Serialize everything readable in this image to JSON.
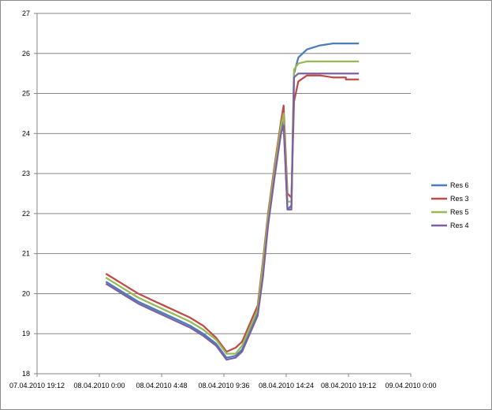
{
  "chart_data": {
    "type": "line",
    "title": "",
    "xlabel": "",
    "ylabel": "",
    "ylim": [
      18,
      27
    ],
    "y_ticks": [
      "18",
      "19",
      "20",
      "21",
      "22",
      "23",
      "24",
      "25",
      "26",
      "27"
    ],
    "x_range": [
      "2010-04-07T19:12",
      "2010-04-09T00:00"
    ],
    "x_tick_labels": [
      "07.04.2010 19:12",
      "08.04.2010 0:00",
      "08.04.2010 4:48",
      "08.04.2010 9:36",
      "08.04.2010 14:24",
      "08.04.2010 19:12",
      "09.04.2010 0:00"
    ],
    "grid": "horizontal",
    "legend_position": "right",
    "series": [
      {
        "name": "Res 6",
        "color": "#4a7ebb",
        "points": [
          [
            "2010-04-08T00:30",
            20.3
          ],
          [
            "2010-04-08T01:00",
            20.2
          ],
          [
            "2010-04-08T02:00",
            20.0
          ],
          [
            "2010-04-08T03:00",
            19.8
          ],
          [
            "2010-04-08T04:00",
            19.65
          ],
          [
            "2010-04-08T05:00",
            19.5
          ],
          [
            "2010-04-08T06:00",
            19.35
          ],
          [
            "2010-04-08T07:00",
            19.2
          ],
          [
            "2010-04-08T08:00",
            19.0
          ],
          [
            "2010-04-08T09:00",
            18.75
          ],
          [
            "2010-04-08T09:48",
            18.4
          ],
          [
            "2010-04-08T10:30",
            18.45
          ],
          [
            "2010-04-08T11:00",
            18.6
          ],
          [
            "2010-04-08T11:40",
            19.1
          ],
          [
            "2010-04-08T12:12",
            19.5
          ],
          [
            "2010-04-08T12:36",
            20.5
          ],
          [
            "2010-04-08T13:00",
            21.8
          ],
          [
            "2010-04-08T13:30",
            23.0
          ],
          [
            "2010-04-08T14:00",
            24.1
          ],
          [
            "2010-04-08T14:12",
            24.3
          ],
          [
            "2010-04-08T14:30",
            22.1
          ],
          [
            "2010-04-08T14:48",
            22.2
          ],
          [
            "2010-04-08T15:00",
            25.5
          ],
          [
            "2010-04-08T15:20",
            25.9
          ],
          [
            "2010-04-08T16:00",
            26.1
          ],
          [
            "2010-04-08T17:00",
            26.2
          ],
          [
            "2010-04-08T18:00",
            26.25
          ],
          [
            "2010-04-08T20:00",
            26.25
          ]
        ]
      },
      {
        "name": "Res 3",
        "color": "#be4b48",
        "points": [
          [
            "2010-04-08T00:30",
            20.5
          ],
          [
            "2010-04-08T01:00",
            20.4
          ],
          [
            "2010-04-08T02:00",
            20.2
          ],
          [
            "2010-04-08T03:00",
            20.0
          ],
          [
            "2010-04-08T04:00",
            19.85
          ],
          [
            "2010-04-08T05:00",
            19.7
          ],
          [
            "2010-04-08T06:00",
            19.55
          ],
          [
            "2010-04-08T07:00",
            19.4
          ],
          [
            "2010-04-08T08:00",
            19.2
          ],
          [
            "2010-04-08T09:00",
            18.9
          ],
          [
            "2010-04-08T09:48",
            18.55
          ],
          [
            "2010-04-08T10:30",
            18.65
          ],
          [
            "2010-04-08T11:00",
            18.8
          ],
          [
            "2010-04-08T11:40",
            19.3
          ],
          [
            "2010-04-08T12:12",
            19.7
          ],
          [
            "2010-04-08T12:36",
            20.8
          ],
          [
            "2010-04-08T13:00",
            22.0
          ],
          [
            "2010-04-08T13:30",
            23.2
          ],
          [
            "2010-04-08T14:00",
            24.3
          ],
          [
            "2010-04-08T14:12",
            24.7
          ],
          [
            "2010-04-08T14:30",
            22.5
          ],
          [
            "2010-04-08T14:48",
            22.4
          ],
          [
            "2010-04-08T15:00",
            24.8
          ],
          [
            "2010-04-08T15:20",
            25.3
          ],
          [
            "2010-04-08T16:00",
            25.45
          ],
          [
            "2010-04-08T17:00",
            25.45
          ],
          [
            "2010-04-08T18:00",
            25.4
          ],
          [
            "2010-04-08T20:00",
            25.35
          ]
        ]
      },
      {
        "name": "Res 5",
        "color": "#98b954",
        "points": [
          [
            "2010-04-08T00:30",
            20.4
          ],
          [
            "2010-04-08T01:00",
            20.3
          ],
          [
            "2010-04-08T02:00",
            20.1
          ],
          [
            "2010-04-08T03:00",
            19.9
          ],
          [
            "2010-04-08T04:00",
            19.75
          ],
          [
            "2010-04-08T05:00",
            19.6
          ],
          [
            "2010-04-08T06:00",
            19.45
          ],
          [
            "2010-04-08T07:00",
            19.3
          ],
          [
            "2010-04-08T08:00",
            19.1
          ],
          [
            "2010-04-08T09:00",
            18.85
          ],
          [
            "2010-04-08T09:48",
            18.5
          ],
          [
            "2010-04-08T10:30",
            18.5
          ],
          [
            "2010-04-08T11:00",
            18.7
          ],
          [
            "2010-04-08T11:40",
            19.2
          ],
          [
            "2010-04-08T12:12",
            19.6
          ],
          [
            "2010-04-08T12:36",
            20.7
          ],
          [
            "2010-04-08T13:00",
            21.9
          ],
          [
            "2010-04-08T13:30",
            23.1
          ],
          [
            "2010-04-08T14:00",
            24.2
          ],
          [
            "2010-04-08T14:12",
            24.5
          ],
          [
            "2010-04-08T14:30",
            22.3
          ],
          [
            "2010-04-08T14:48",
            22.3
          ],
          [
            "2010-04-08T15:00",
            25.6
          ],
          [
            "2010-04-08T15:20",
            25.75
          ],
          [
            "2010-04-08T16:00",
            25.8
          ],
          [
            "2010-04-08T17:00",
            25.8
          ],
          [
            "2010-04-08T18:00",
            25.8
          ],
          [
            "2010-04-08T20:00",
            25.8
          ]
        ]
      },
      {
        "name": "Res 4",
        "color": "#7d60a0",
        "points": [
          [
            "2010-04-08T00:30",
            20.25
          ],
          [
            "2010-04-08T01:00",
            20.15
          ],
          [
            "2010-04-08T02:00",
            19.95
          ],
          [
            "2010-04-08T03:00",
            19.75
          ],
          [
            "2010-04-08T04:00",
            19.6
          ],
          [
            "2010-04-08T05:00",
            19.45
          ],
          [
            "2010-04-08T06:00",
            19.3
          ],
          [
            "2010-04-08T07:00",
            19.15
          ],
          [
            "2010-04-08T08:00",
            18.95
          ],
          [
            "2010-04-08T09:00",
            18.7
          ],
          [
            "2010-04-08T09:48",
            18.35
          ],
          [
            "2010-04-08T10:30",
            18.4
          ],
          [
            "2010-04-08T11:00",
            18.55
          ],
          [
            "2010-04-08T11:40",
            19.05
          ],
          [
            "2010-04-08T12:12",
            19.45
          ],
          [
            "2010-04-08T12:36",
            20.4
          ],
          [
            "2010-04-08T13:00",
            21.7
          ],
          [
            "2010-04-08T13:30",
            22.9
          ],
          [
            "2010-04-08T14:00",
            24.0
          ],
          [
            "2010-04-08T14:12",
            24.2
          ],
          [
            "2010-04-08T14:30",
            22.1
          ],
          [
            "2010-04-08T14:48",
            22.1
          ],
          [
            "2010-04-08T15:00",
            25.4
          ],
          [
            "2010-04-08T15:20",
            25.5
          ],
          [
            "2010-04-08T16:00",
            25.5
          ],
          [
            "2010-04-08T17:00",
            25.5
          ],
          [
            "2010-04-08T18:00",
            25.5
          ],
          [
            "2010-04-08T20:00",
            25.5
          ]
        ]
      }
    ]
  }
}
